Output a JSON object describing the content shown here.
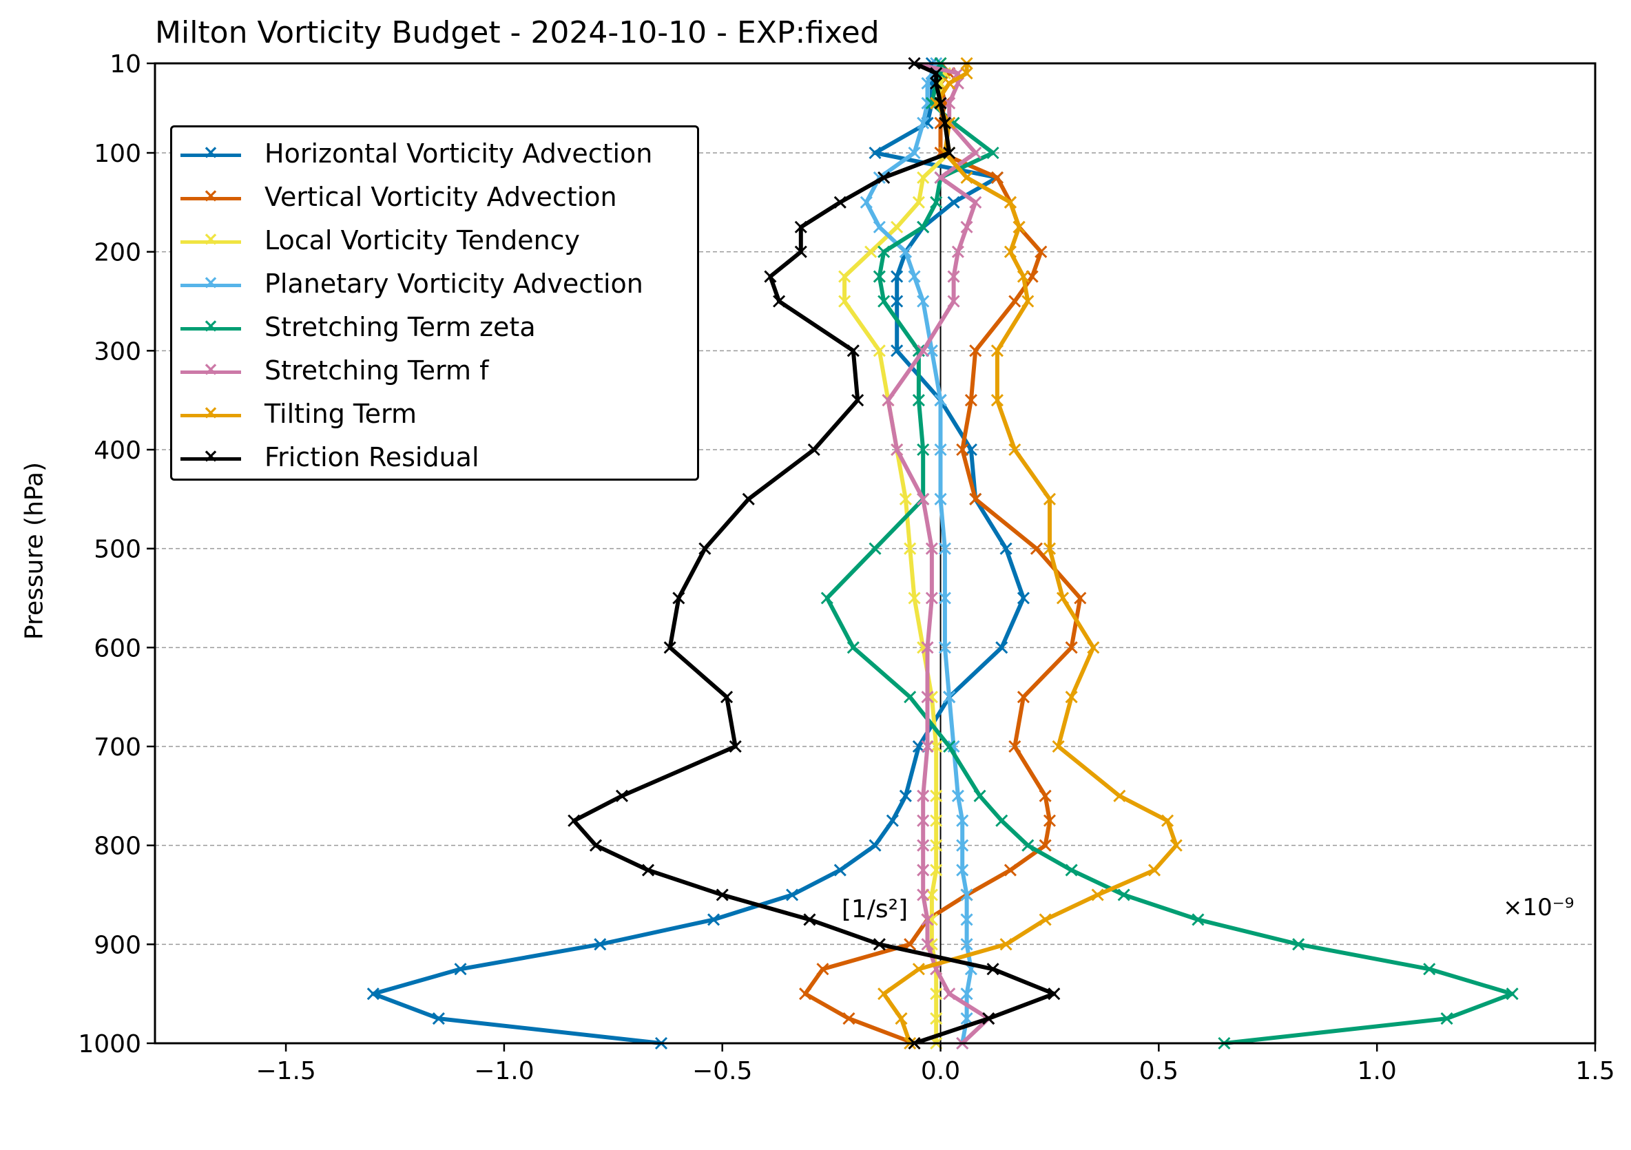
{
  "chart_data": {
    "type": "line",
    "title": "Milton Vorticity Budget - 2024-10-10 - EXP:fixed",
    "xlabel": "[1/s²]",
    "ylabel": "Pressure (hPa)",
    "x_multiplier_label": "×10⁻⁹",
    "xlim": [
      -1.8,
      1.5
    ],
    "ylim": [
      1000,
      10
    ],
    "x_ticks": [
      -1.5,
      -1.0,
      -0.5,
      0.0,
      0.5,
      1.0,
      1.5
    ],
    "x_tick_labels": [
      "−1.5",
      "−1.0",
      "−0.5",
      "0.0",
      "0.5",
      "1.0",
      "1.5"
    ],
    "y_ticks": [
      10,
      100,
      200,
      300,
      400,
      500,
      600,
      700,
      800,
      900,
      1000
    ],
    "y_tick_labels": [
      "10",
      "100",
      "200",
      "300",
      "400",
      "500",
      "600",
      "700",
      "800",
      "900",
      "1000"
    ],
    "grid": "horizontal dashed",
    "legend_position": "upper-left",
    "pressure_levels": [
      10,
      20,
      30,
      50,
      70,
      100,
      125,
      150,
      175,
      200,
      225,
      250,
      300,
      350,
      400,
      450,
      500,
      550,
      600,
      650,
      700,
      750,
      775,
      800,
      825,
      850,
      875,
      900,
      925,
      950,
      975,
      1000
    ],
    "series": [
      {
        "name": "Horizontal Vorticity Advection",
        "color": "#0072B2",
        "values": [
          -0.02,
          0.0,
          -0.02,
          -0.02,
          -0.03,
          -0.15,
          0.13,
          0.03,
          -0.04,
          -0.08,
          -0.1,
          -0.1,
          -0.1,
          0.0,
          0.07,
          0.08,
          0.15,
          0.19,
          0.14,
          0.02,
          -0.05,
          -0.08,
          -0.11,
          -0.15,
          -0.23,
          -0.34,
          -0.52,
          -0.78,
          -1.1,
          -1.3,
          -1.15,
          -0.64
        ]
      },
      {
        "name": "Vertical Vorticity Advection",
        "color": "#D55E00",
        "values": [
          0.0,
          0.02,
          0.0,
          0.01,
          0.0,
          0.0,
          0.13,
          0.16,
          0.18,
          0.23,
          0.21,
          0.17,
          0.08,
          0.07,
          0.05,
          0.08,
          0.22,
          0.32,
          0.3,
          0.19,
          0.17,
          0.24,
          0.25,
          0.24,
          0.16,
          0.06,
          -0.03,
          -0.07,
          -0.27,
          -0.31,
          -0.21,
          -0.06
        ]
      },
      {
        "name": "Local Vorticity Tendency",
        "color": "#F0E442",
        "values": [
          0.0,
          0.01,
          0.0,
          0.0,
          0.01,
          0.02,
          -0.04,
          -0.05,
          -0.1,
          -0.16,
          -0.22,
          -0.22,
          -0.14,
          -0.12,
          -0.1,
          -0.08,
          -0.07,
          -0.06,
          -0.04,
          -0.02,
          -0.01,
          -0.01,
          -0.01,
          -0.01,
          -0.01,
          -0.02,
          -0.02,
          -0.02,
          -0.01,
          -0.01,
          -0.01,
          -0.01
        ]
      },
      {
        "name": "Planetary Vorticity Advection",
        "color": "#56B4E9",
        "values": [
          -0.01,
          -0.02,
          -0.03,
          -0.03,
          -0.04,
          -0.06,
          -0.14,
          -0.17,
          -0.14,
          -0.08,
          -0.06,
          -0.04,
          -0.02,
          0.0,
          0.0,
          0.0,
          0.01,
          0.01,
          0.01,
          0.02,
          0.03,
          0.04,
          0.05,
          0.05,
          0.05,
          0.06,
          0.06,
          0.06,
          0.07,
          0.06,
          0.06,
          0.05
        ]
      },
      {
        "name": "Stretching Term zeta",
        "color": "#009E73",
        "values": [
          0.0,
          0.0,
          -0.01,
          -0.02,
          0.03,
          0.12,
          0.0,
          -0.01,
          -0.04,
          -0.13,
          -0.14,
          -0.13,
          -0.05,
          -0.05,
          -0.04,
          -0.04,
          -0.15,
          -0.26,
          -0.2,
          -0.07,
          0.02,
          0.09,
          0.14,
          0.2,
          0.3,
          0.42,
          0.59,
          0.82,
          1.12,
          1.31,
          1.16,
          0.65
        ]
      },
      {
        "name": "Stretching Term f",
        "color": "#CC79A7",
        "values": [
          -0.06,
          0.04,
          0.04,
          0.02,
          0.02,
          0.08,
          0.0,
          0.08,
          0.06,
          0.04,
          0.03,
          0.03,
          -0.04,
          -0.12,
          -0.1,
          -0.04,
          -0.02,
          -0.02,
          -0.03,
          -0.03,
          -0.03,
          -0.04,
          -0.04,
          -0.04,
          -0.04,
          -0.04,
          -0.03,
          -0.03,
          -0.01,
          0.02,
          0.11,
          0.05
        ]
      },
      {
        "name": "Tilting Term",
        "color": "#E69F00",
        "values": [
          0.06,
          0.06,
          0.02,
          -0.01,
          0.02,
          0.01,
          0.06,
          0.16,
          0.18,
          0.16,
          0.19,
          0.2,
          0.13,
          0.13,
          0.17,
          0.25,
          0.25,
          0.28,
          0.35,
          0.3,
          0.27,
          0.41,
          0.52,
          0.54,
          0.49,
          0.36,
          0.24,
          0.15,
          -0.05,
          -0.13,
          -0.09,
          -0.07
        ]
      },
      {
        "name": "Friction Residual",
        "color": "#000000",
        "values": [
          -0.06,
          -0.01,
          -0.01,
          0.0,
          0.01,
          0.02,
          -0.13,
          -0.23,
          -0.32,
          -0.32,
          -0.39,
          -0.37,
          -0.2,
          -0.19,
          -0.29,
          -0.44,
          -0.54,
          -0.6,
          -0.62,
          -0.49,
          -0.47,
          -0.73,
          -0.84,
          -0.79,
          -0.67,
          -0.5,
          -0.3,
          -0.14,
          0.12,
          0.26,
          0.11,
          -0.06
        ]
      }
    ]
  }
}
